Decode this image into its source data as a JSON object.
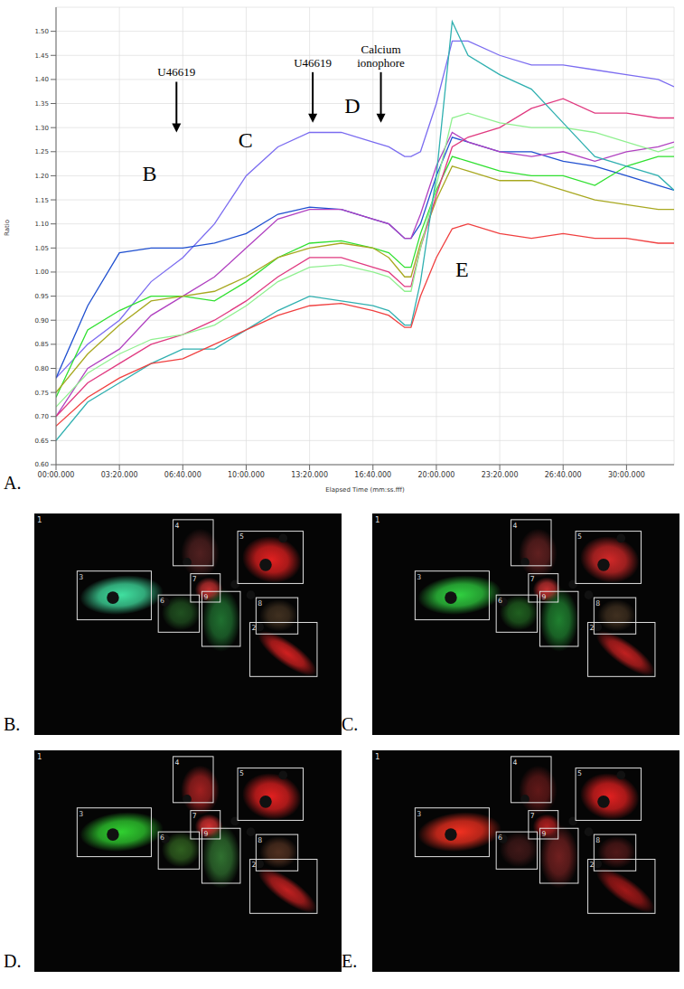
{
  "chart_data": {
    "type": "line",
    "panel_label": "A.",
    "x_label": "Elapsed Time (mm:ss.fff)",
    "y_label": "Ratio",
    "grid": true,
    "x": [
      0,
      100,
      200,
      300,
      400,
      500,
      600,
      700,
      800,
      900,
      1000,
      1050,
      1100,
      1120,
      1150,
      1200,
      1250,
      1300,
      1400,
      1500,
      1600,
      1700,
      1800,
      1900,
      1950
    ],
    "xlim": [
      0,
      1950
    ],
    "xticks": [
      {
        "value": 0,
        "label": "00:00.000"
      },
      {
        "value": 200,
        "label": "03:20.000"
      },
      {
        "value": 400,
        "label": "06:40.000"
      },
      {
        "value": 600,
        "label": "10:00.000"
      },
      {
        "value": 800,
        "label": "13:20.000"
      },
      {
        "value": 1000,
        "label": "16:40.000"
      },
      {
        "value": 1200,
        "label": "20:00.000"
      },
      {
        "value": 1400,
        "label": "23:20.000"
      },
      {
        "value": 1600,
        "label": "26:40.000"
      },
      {
        "value": 1800,
        "label": "30:00.000"
      }
    ],
    "ylim": [
      0.6,
      1.55
    ],
    "yticks": [
      {
        "value": 0.6,
        "label": "0.60"
      },
      0.65,
      {
        "value": 0.7,
        "label": "0.70"
      },
      0.75,
      {
        "value": 0.8,
        "label": "0.80"
      },
      0.85,
      {
        "value": 0.9,
        "label": "0.90"
      },
      0.95,
      {
        "value": 1,
        "label": "1.00"
      },
      1.05,
      {
        "value": 1.1,
        "label": "1.10"
      },
      1.15,
      {
        "value": 1.2,
        "label": "1.20"
      },
      1.25,
      {
        "value": 1.3,
        "label": "1.30"
      },
      1.35,
      {
        "value": 1.4,
        "label": "1.40"
      },
      1.45,
      {
        "value": 1.5,
        "label": "1.50"
      }
    ],
    "series": [
      {
        "color": "#7b6cf0",
        "values": [
          0.78,
          0.85,
          0.9,
          0.98,
          1.03,
          1.1,
          1.2,
          1.26,
          1.29,
          1.29,
          1.27,
          1.26,
          1.24,
          1.24,
          1.25,
          1.35,
          1.48,
          1.48,
          1.45,
          1.43,
          1.43,
          1.42,
          1.41,
          1.4,
          1.385
        ]
      },
      {
        "color": "#2050d0",
        "values": [
          0.78,
          0.93,
          1.04,
          1.05,
          1.05,
          1.06,
          1.08,
          1.12,
          1.135,
          1.13,
          1.11,
          1.1,
          1.07,
          1.07,
          1.1,
          1.2,
          1.28,
          1.27,
          1.25,
          1.25,
          1.23,
          1.22,
          1.2,
          1.18,
          1.17
        ]
      },
      {
        "color": "#b040c0",
        "values": [
          0.7,
          0.8,
          0.84,
          0.91,
          0.95,
          0.99,
          1.05,
          1.11,
          1.13,
          1.13,
          1.11,
          1.1,
          1.07,
          1.07,
          1.12,
          1.22,
          1.29,
          1.27,
          1.25,
          1.24,
          1.25,
          1.23,
          1.25,
          1.26,
          1.27
        ]
      },
      {
        "color": "#30e030",
        "values": [
          0.74,
          0.88,
          0.92,
          0.95,
          0.95,
          0.94,
          0.98,
          1.03,
          1.06,
          1.065,
          1.05,
          1.04,
          1.01,
          1.01,
          1.08,
          1.17,
          1.24,
          1.23,
          1.21,
          1.2,
          1.2,
          1.18,
          1.22,
          1.24,
          1.24
        ]
      },
      {
        "color": "#a8a820",
        "values": [
          0.75,
          0.83,
          0.89,
          0.94,
          0.95,
          0.96,
          0.99,
          1.03,
          1.05,
          1.06,
          1.05,
          1.03,
          0.99,
          0.99,
          1.06,
          1.15,
          1.22,
          1.21,
          1.19,
          1.19,
          1.17,
          1.15,
          1.14,
          1.13,
          1.13
        ]
      },
      {
        "color": "#e03a80",
        "values": [
          0.7,
          0.77,
          0.81,
          0.85,
          0.87,
          0.9,
          0.94,
          0.99,
          1.03,
          1.03,
          1.01,
          1.0,
          0.97,
          0.97,
          1.05,
          1.16,
          1.26,
          1.28,
          1.3,
          1.34,
          1.36,
          1.33,
          1.33,
          1.32,
          1.32
        ]
      },
      {
        "color": "#90f090",
        "values": [
          0.72,
          0.79,
          0.83,
          0.86,
          0.87,
          0.89,
          0.93,
          0.98,
          1.01,
          1.015,
          1.0,
          0.99,
          0.96,
          0.96,
          1.05,
          1.18,
          1.32,
          1.33,
          1.31,
          1.3,
          1.3,
          1.29,
          1.27,
          1.25,
          1.26
        ]
      },
      {
        "color": "#30b0b0",
        "values": [
          0.65,
          0.73,
          0.77,
          0.81,
          0.84,
          0.84,
          0.88,
          0.92,
          0.95,
          0.94,
          0.93,
          0.92,
          0.89,
          0.89,
          0.98,
          1.2,
          1.52,
          1.45,
          1.41,
          1.38,
          1.31,
          1.24,
          1.22,
          1.2,
          1.17
        ]
      },
      {
        "color": "#f04040",
        "values": [
          0.68,
          0.74,
          0.78,
          0.81,
          0.82,
          0.85,
          0.88,
          0.91,
          0.93,
          0.935,
          0.92,
          0.91,
          0.885,
          0.885,
          0.95,
          1.03,
          1.09,
          1.1,
          1.08,
          1.07,
          1.08,
          1.07,
          1.07,
          1.06,
          1.06
        ]
      }
    ],
    "annotations": [
      {
        "text": "U46619",
        "x": 380,
        "y": 1.29,
        "marker": "arrow"
      },
      {
        "text": "U46619",
        "x": 810,
        "y": 1.31,
        "marker": "arrow"
      },
      {
        "text": "Calcium ionophore",
        "x": 1025,
        "y": 1.31,
        "marker": "arrow"
      },
      {
        "text": "B",
        "x": 295,
        "y": 1.2
      },
      {
        "text": "C",
        "x": 598,
        "y": 1.27
      },
      {
        "text": "D",
        "x": 935,
        "y": 1.34
      },
      {
        "text": "E",
        "x": 1281,
        "y": 1.0
      }
    ]
  },
  "images": {
    "region_labels": [
      "1",
      "2",
      "3",
      "4",
      "5",
      "6",
      "7",
      "8",
      "9"
    ],
    "panels": [
      {
        "label": "B.",
        "cells": [
          {
            "region": "2",
            "color": "#d02020"
          },
          {
            "region": "3",
            "color": "#40e0a0"
          },
          {
            "region": "4",
            "color": "#502020"
          },
          {
            "region": "5",
            "color": "#e02020"
          },
          {
            "region": "6",
            "color": "#205020"
          },
          {
            "region": "7",
            "color": "#c03030"
          },
          {
            "region": "8",
            "color": "#403020"
          },
          {
            "region": "9",
            "color": "#207030"
          }
        ]
      },
      {
        "label": "C.",
        "cells": [
          {
            "region": "2",
            "color": "#c02020"
          },
          {
            "region": "3",
            "color": "#30d040"
          },
          {
            "region": "4",
            "color": "#602020"
          },
          {
            "region": "5",
            "color": "#d02828"
          },
          {
            "region": "6",
            "color": "#206020"
          },
          {
            "region": "7",
            "color": "#c03030"
          },
          {
            "region": "8",
            "color": "#403020"
          },
          {
            "region": "9",
            "color": "#208030"
          }
        ]
      },
      {
        "label": "D.",
        "cells": [
          {
            "region": "2",
            "color": "#c02020"
          },
          {
            "region": "3",
            "color": "#30d030"
          },
          {
            "region": "4",
            "color": "#a02020"
          },
          {
            "region": "5",
            "color": "#e02020"
          },
          {
            "region": "6",
            "color": "#306020"
          },
          {
            "region": "7",
            "color": "#d03030"
          },
          {
            "region": "8",
            "color": "#503020"
          },
          {
            "region": "9",
            "color": "#307030"
          }
        ]
      },
      {
        "label": "E.",
        "cells": [
          {
            "region": "2",
            "color": "#a01818"
          },
          {
            "region": "3",
            "color": "#f03020"
          },
          {
            "region": "4",
            "color": "#601818"
          },
          {
            "region": "5",
            "color": "#e02020"
          },
          {
            "region": "6",
            "color": "#401818"
          },
          {
            "region": "7",
            "color": "#b02020"
          },
          {
            "region": "8",
            "color": "#501818"
          },
          {
            "region": "9",
            "color": "#702020"
          }
        ]
      }
    ]
  }
}
